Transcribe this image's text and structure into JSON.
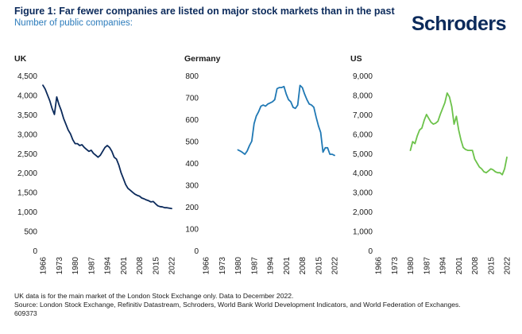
{
  "header": {
    "title": "Figure 1: Far fewer companies are listed on major stock markets than in the past",
    "subtitle": "Number of public companies:",
    "logo": "Schroders"
  },
  "colors": {
    "uk": "#0b2a5b",
    "germany": "#1f78b4",
    "us": "#6cc24a"
  },
  "chart_data": [
    {
      "type": "line",
      "title": "UK",
      "x_ticks": [
        "1966",
        "1973",
        "1980",
        "1987",
        "1994",
        "2001",
        "2008",
        "2015",
        "2022"
      ],
      "y_ticks": [
        "4,500",
        "4,000",
        "3,500",
        "3,000",
        "2,500",
        "2,000",
        "1,500",
        "1,000",
        "500",
        "0"
      ],
      "xlim": [
        1966,
        2022
      ],
      "ylim": [
        0,
        4500
      ],
      "series": [
        {
          "x": [
            1966,
            1967,
            1968,
            1969,
            1970,
            1971,
            1972,
            1973,
            1974,
            1975,
            1976,
            1977,
            1978,
            1979,
            1980,
            1981,
            1982,
            1983,
            1984,
            1985,
            1986,
            1987,
            1988,
            1989,
            1990,
            1991,
            1992,
            1993,
            1994,
            1995,
            1996,
            1997,
            1998,
            1999,
            2000,
            2001,
            2002,
            2003,
            2004,
            2005,
            2006,
            2007,
            2008,
            2009,
            2010,
            2011,
            2012,
            2013,
            2014,
            2015,
            2016,
            2017,
            2018,
            2019,
            2020,
            2021,
            2022
          ],
          "y": [
            4250,
            4150,
            4000,
            3850,
            3650,
            3500,
            3950,
            3750,
            3600,
            3400,
            3250,
            3100,
            3000,
            2850,
            2750,
            2750,
            2700,
            2720,
            2650,
            2600,
            2550,
            2580,
            2500,
            2450,
            2400,
            2450,
            2550,
            2650,
            2700,
            2650,
            2550,
            2400,
            2350,
            2200,
            2000,
            1850,
            1700,
            1600,
            1550,
            1500,
            1450,
            1420,
            1400,
            1350,
            1330,
            1300,
            1280,
            1250,
            1260,
            1200,
            1150,
            1130,
            1120,
            1100,
            1100,
            1090,
            1080
          ]
        }
      ]
    },
    {
      "type": "line",
      "title": "Germany",
      "x_ticks": [
        "1966",
        "1973",
        "1980",
        "1987",
        "1994",
        "2001",
        "2008",
        "2015",
        "2022"
      ],
      "y_ticks": [
        "800",
        "700",
        "600",
        "500",
        "400",
        "300",
        "200",
        "100",
        "0"
      ],
      "xlim": [
        1966,
        2022
      ],
      "ylim": [
        0,
        800
      ],
      "series": [
        {
          "x": [
            1980,
            1981,
            1982,
            1983,
            1984,
            1985,
            1986,
            1987,
            1988,
            1989,
            1990,
            1991,
            1992,
            1993,
            1994,
            1995,
            1996,
            1997,
            1998,
            1999,
            2000,
            2001,
            2002,
            2003,
            2004,
            2005,
            2006,
            2007,
            2008,
            2009,
            2010,
            2011,
            2012,
            2013,
            2014,
            2015,
            2016,
            2017,
            2018,
            2019,
            2020,
            2021,
            2022
          ],
          "y": [
            460,
            455,
            448,
            440,
            455,
            480,
            500,
            580,
            615,
            635,
            660,
            665,
            660,
            670,
            675,
            680,
            690,
            740,
            745,
            745,
            750,
            715,
            690,
            680,
            655,
            650,
            665,
            755,
            745,
            715,
            690,
            670,
            665,
            655,
            610,
            570,
            540,
            450,
            470,
            470,
            440,
            440,
            435
          ]
        }
      ]
    },
    {
      "type": "line",
      "title": "US",
      "x_ticks": [
        "1966",
        "1973",
        "1980",
        "1987",
        "1994",
        "2001",
        "2008",
        "2015",
        "2022"
      ],
      "y_ticks": [
        "9,000",
        "8,000",
        "7,000",
        "6,000",
        "5,000",
        "4,000",
        "3,000",
        "2,000",
        "1,000",
        "0"
      ],
      "xlim": [
        1966,
        2022
      ],
      "ylim": [
        0,
        9000
      ],
      "series": [
        {
          "x": [
            1980,
            1981,
            1982,
            1983,
            1984,
            1985,
            1986,
            1987,
            1988,
            1989,
            1990,
            1991,
            1992,
            1993,
            1994,
            1995,
            1996,
            1997,
            1998,
            1999,
            2000,
            2001,
            2002,
            2003,
            2004,
            2005,
            2006,
            2007,
            2008,
            2009,
            2010,
            2011,
            2012,
            2013,
            2014,
            2015,
            2016,
            2017,
            2018,
            2019,
            2020,
            2021,
            2022
          ],
          "y": [
            5150,
            5600,
            5500,
            5900,
            6200,
            6300,
            6700,
            7000,
            6800,
            6600,
            6500,
            6550,
            6650,
            7000,
            7300,
            7600,
            8100,
            7900,
            7400,
            6500,
            6900,
            6200,
            5700,
            5300,
            5200,
            5150,
            5150,
            5150,
            4700,
            4500,
            4300,
            4200,
            4050,
            4000,
            4100,
            4200,
            4150,
            4050,
            4000,
            4000,
            3900,
            4200,
            4800
          ]
        }
      ]
    }
  ],
  "footer": {
    "note": "UK data is for the main market of the London Stock Exchange only. Data to December 2022.",
    "source": "Source: London Stock Exchange, Refinitiv Datastream, Schroders, World Bank World Development Indicators, and World Federation of Exchanges.",
    "code": "609373"
  }
}
